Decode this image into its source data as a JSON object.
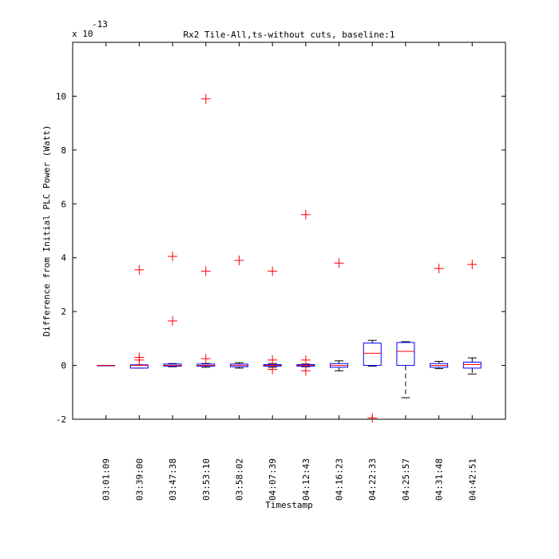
{
  "chart_data": {
    "type": "box",
    "title": "Rx2 Tile-All,ts-without cuts, baseline:1",
    "xlabel": "Timestamp",
    "ylabel": "Difference from Initial PLC Power (Watt)",
    "y_multiplier_label": {
      "base": "x 10",
      "exponent": "-13"
    },
    "ylim": [
      -2,
      12
    ],
    "yticks": [
      -2,
      0,
      2,
      4,
      6,
      8,
      10
    ],
    "grid": false,
    "colors": {
      "box": "#0000ff",
      "median": "#ff0000",
      "whisker": "#000000",
      "outlier": "#ff0000",
      "axes": "#000000"
    },
    "categories": [
      "03:01:09",
      "03:39:00",
      "03:47:38",
      "03:53:10",
      "03:58:02",
      "04:07:39",
      "04:12:43",
      "04:16:23",
      "04:22:33",
      "04:25:57",
      "04:31:48",
      "04:42:51"
    ],
    "boxes": [
      {
        "label": "03:01:09",
        "whislo": 0,
        "q1": 0,
        "med": 0,
        "q3": 0,
        "whishi": 0,
        "outliers": []
      },
      {
        "label": "03:39:00",
        "whislo": -0.1,
        "q1": -0.1,
        "med": 0,
        "q3": 0.02,
        "whishi": 0.02,
        "outliers": [
          0.2,
          0.3,
          3.55
        ]
      },
      {
        "label": "03:47:38",
        "whislo": -0.05,
        "q1": -0.03,
        "med": 0,
        "q3": 0.05,
        "whishi": 0.07,
        "outliers": [
          1.65,
          4.05
        ]
      },
      {
        "label": "03:53:10",
        "whislo": -0.07,
        "q1": -0.03,
        "med": 0,
        "q3": 0.05,
        "whishi": 0.07,
        "outliers": [
          0.25,
          3.5,
          9.9
        ]
      },
      {
        "label": "03:58:02",
        "whislo": -0.1,
        "q1": -0.05,
        "med": 0,
        "q3": 0.05,
        "whishi": 0.1,
        "outliers": [
          3.9
        ]
      },
      {
        "label": "04:07:39",
        "whislo": -0.07,
        "q1": -0.03,
        "med": 0,
        "q3": 0.03,
        "whishi": 0.07,
        "outliers": [
          -0.15,
          0.2,
          3.5
        ]
      },
      {
        "label": "04:12:43",
        "whislo": -0.05,
        "q1": -0.03,
        "med": 0,
        "q3": 0.03,
        "whishi": 0.05,
        "outliers": [
          -0.2,
          0.2,
          5.6
        ]
      },
      {
        "label": "04:16:23",
        "whislo": -0.2,
        "q1": -0.07,
        "med": 0,
        "q3": 0.07,
        "whishi": 0.17,
        "outliers": [
          3.8
        ]
      },
      {
        "label": "04:22:33",
        "whislo": -0.03,
        "q1": 0,
        "med": 0.45,
        "q3": 0.83,
        "whishi": 0.93,
        "outliers": [
          -1.95
        ]
      },
      {
        "label": "04:25:57",
        "whislo": -1.2,
        "q1": 0,
        "med": 0.52,
        "q3": 0.85,
        "whishi": 0.88,
        "outliers": []
      },
      {
        "label": "04:31:48",
        "whislo": -0.12,
        "q1": -0.07,
        "med": 0,
        "q3": 0.07,
        "whishi": 0.15,
        "outliers": [
          3.6
        ]
      },
      {
        "label": "04:42:51",
        "whislo": -0.32,
        "q1": -0.1,
        "med": 0.03,
        "q3": 0.12,
        "whishi": 0.28,
        "outliers": [
          3.75
        ]
      }
    ]
  }
}
